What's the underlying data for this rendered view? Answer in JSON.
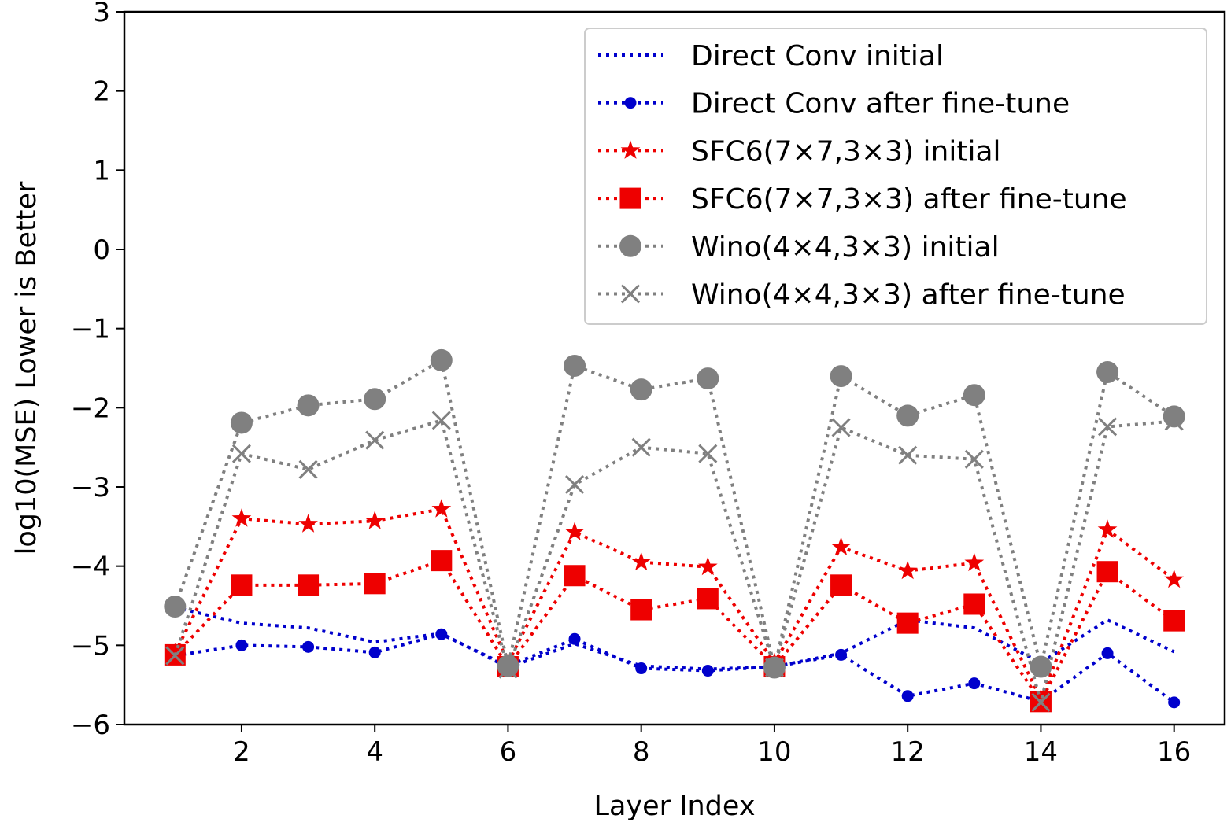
{
  "chart_data": {
    "type": "line",
    "xlabel": "Layer Index",
    "ylabel": "log10(MSE)  Lower is Better",
    "xlim": [
      0.24,
      16.76
    ],
    "ylim": [
      -6,
      3
    ],
    "xticks": [
      2,
      4,
      6,
      8,
      10,
      12,
      14,
      16
    ],
    "xtick_labels": [
      "2",
      "4",
      "6",
      "8",
      "10",
      "12",
      "14",
      "16"
    ],
    "yticks": [
      3,
      2,
      1,
      0,
      -1,
      -2,
      -3,
      -4,
      -5,
      -6
    ],
    "ytick_labels": [
      "3",
      "2",
      "1",
      "0",
      "−1",
      "−2",
      "−3",
      "−4",
      "−5",
      "−6"
    ],
    "legend_position": "upper right",
    "x": [
      1,
      2,
      3,
      4,
      5,
      6,
      7,
      8,
      9,
      10,
      11,
      12,
      13,
      14,
      15,
      16
    ],
    "series": [
      {
        "name": "Direct Conv initial",
        "color": "#0000cc",
        "marker": "none",
        "values": [
          -4.52,
          -4.72,
          -4.78,
          -4.96,
          -4.85,
          -5.28,
          -4.98,
          -5.26,
          -5.3,
          -5.27,
          -5.1,
          -4.68,
          -4.78,
          -5.22,
          -4.68,
          -5.08
        ]
      },
      {
        "name": "Direct Conv after fine-tune",
        "color": "#0000cc",
        "marker": "dot",
        "values": [
          -5.13,
          -5.0,
          -5.02,
          -5.09,
          -4.86,
          -5.26,
          -4.92,
          -5.29,
          -5.32,
          -5.27,
          -5.12,
          -5.64,
          -5.48,
          -5.71,
          -5.1,
          -5.72
        ]
      },
      {
        "name": "SFC6(7×7,3×3) initial",
        "color": "#ee0000",
        "marker": "star",
        "values": [
          -5.1,
          -3.4,
          -3.47,
          -3.43,
          -3.28,
          -5.22,
          -3.57,
          -3.95,
          -4.01,
          -5.22,
          -3.76,
          -4.06,
          -3.96,
          -5.68,
          -3.54,
          -4.17
        ]
      },
      {
        "name": "SFC6(7×7,3×3) after fine-tune",
        "color": "#ee0000",
        "marker": "square",
        "values": [
          -5.12,
          -4.24,
          -4.24,
          -4.22,
          -3.93,
          -5.27,
          -4.12,
          -4.55,
          -4.41,
          -5.27,
          -4.24,
          -4.72,
          -4.48,
          -5.71,
          -4.07,
          -4.69
        ]
      },
      {
        "name": "Wino(4×4,3×3) initial",
        "color": "#808080",
        "marker": "circle",
        "values": [
          -4.51,
          -2.19,
          -1.97,
          -1.89,
          -1.4,
          -5.26,
          -1.47,
          -1.77,
          -1.63,
          -5.28,
          -1.6,
          -2.1,
          -1.84,
          -5.27,
          -1.55,
          -2.11
        ]
      },
      {
        "name": "Wino(4×4,3×3) after fine-tune",
        "color": "#808080",
        "marker": "x",
        "values": [
          -5.13,
          -2.58,
          -2.78,
          -2.41,
          -2.16,
          -5.3,
          -2.97,
          -2.5,
          -2.58,
          -5.28,
          -2.25,
          -2.6,
          -2.65,
          -5.72,
          -2.24,
          -2.17
        ]
      }
    ]
  }
}
